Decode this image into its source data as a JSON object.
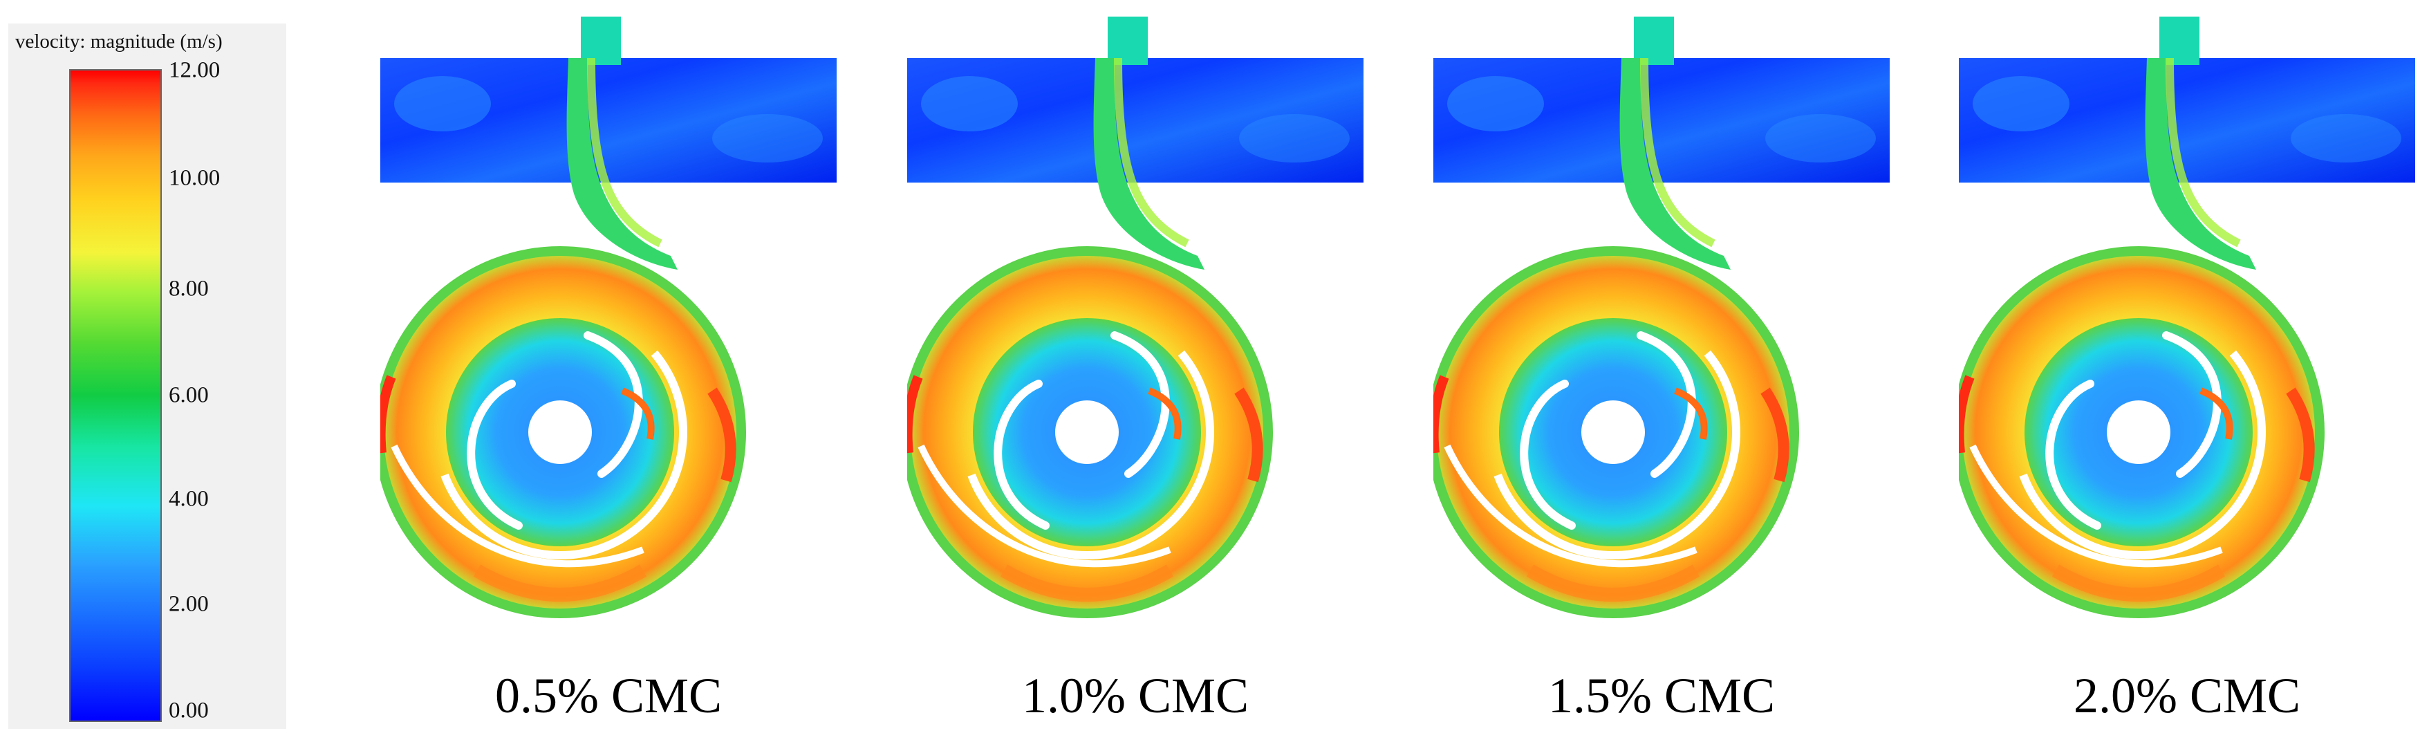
{
  "legend": {
    "title": "velocity: magnitude (m/s)",
    "ticks": [
      "12.00",
      "10.00",
      "8.00",
      "6.00",
      "4.00",
      "2.00",
      "0.00"
    ],
    "colors": [
      "#0000ff",
      "#1fe6f6",
      "#11cc44",
      "#f4f43a",
      "#ff0000"
    ]
  },
  "panels": [
    {
      "label": "0.5% CMC"
    },
    {
      "label": "1.0% CMC"
    },
    {
      "label": "1.5% CMC"
    },
    {
      "label": "2.0% CMC"
    }
  ]
}
